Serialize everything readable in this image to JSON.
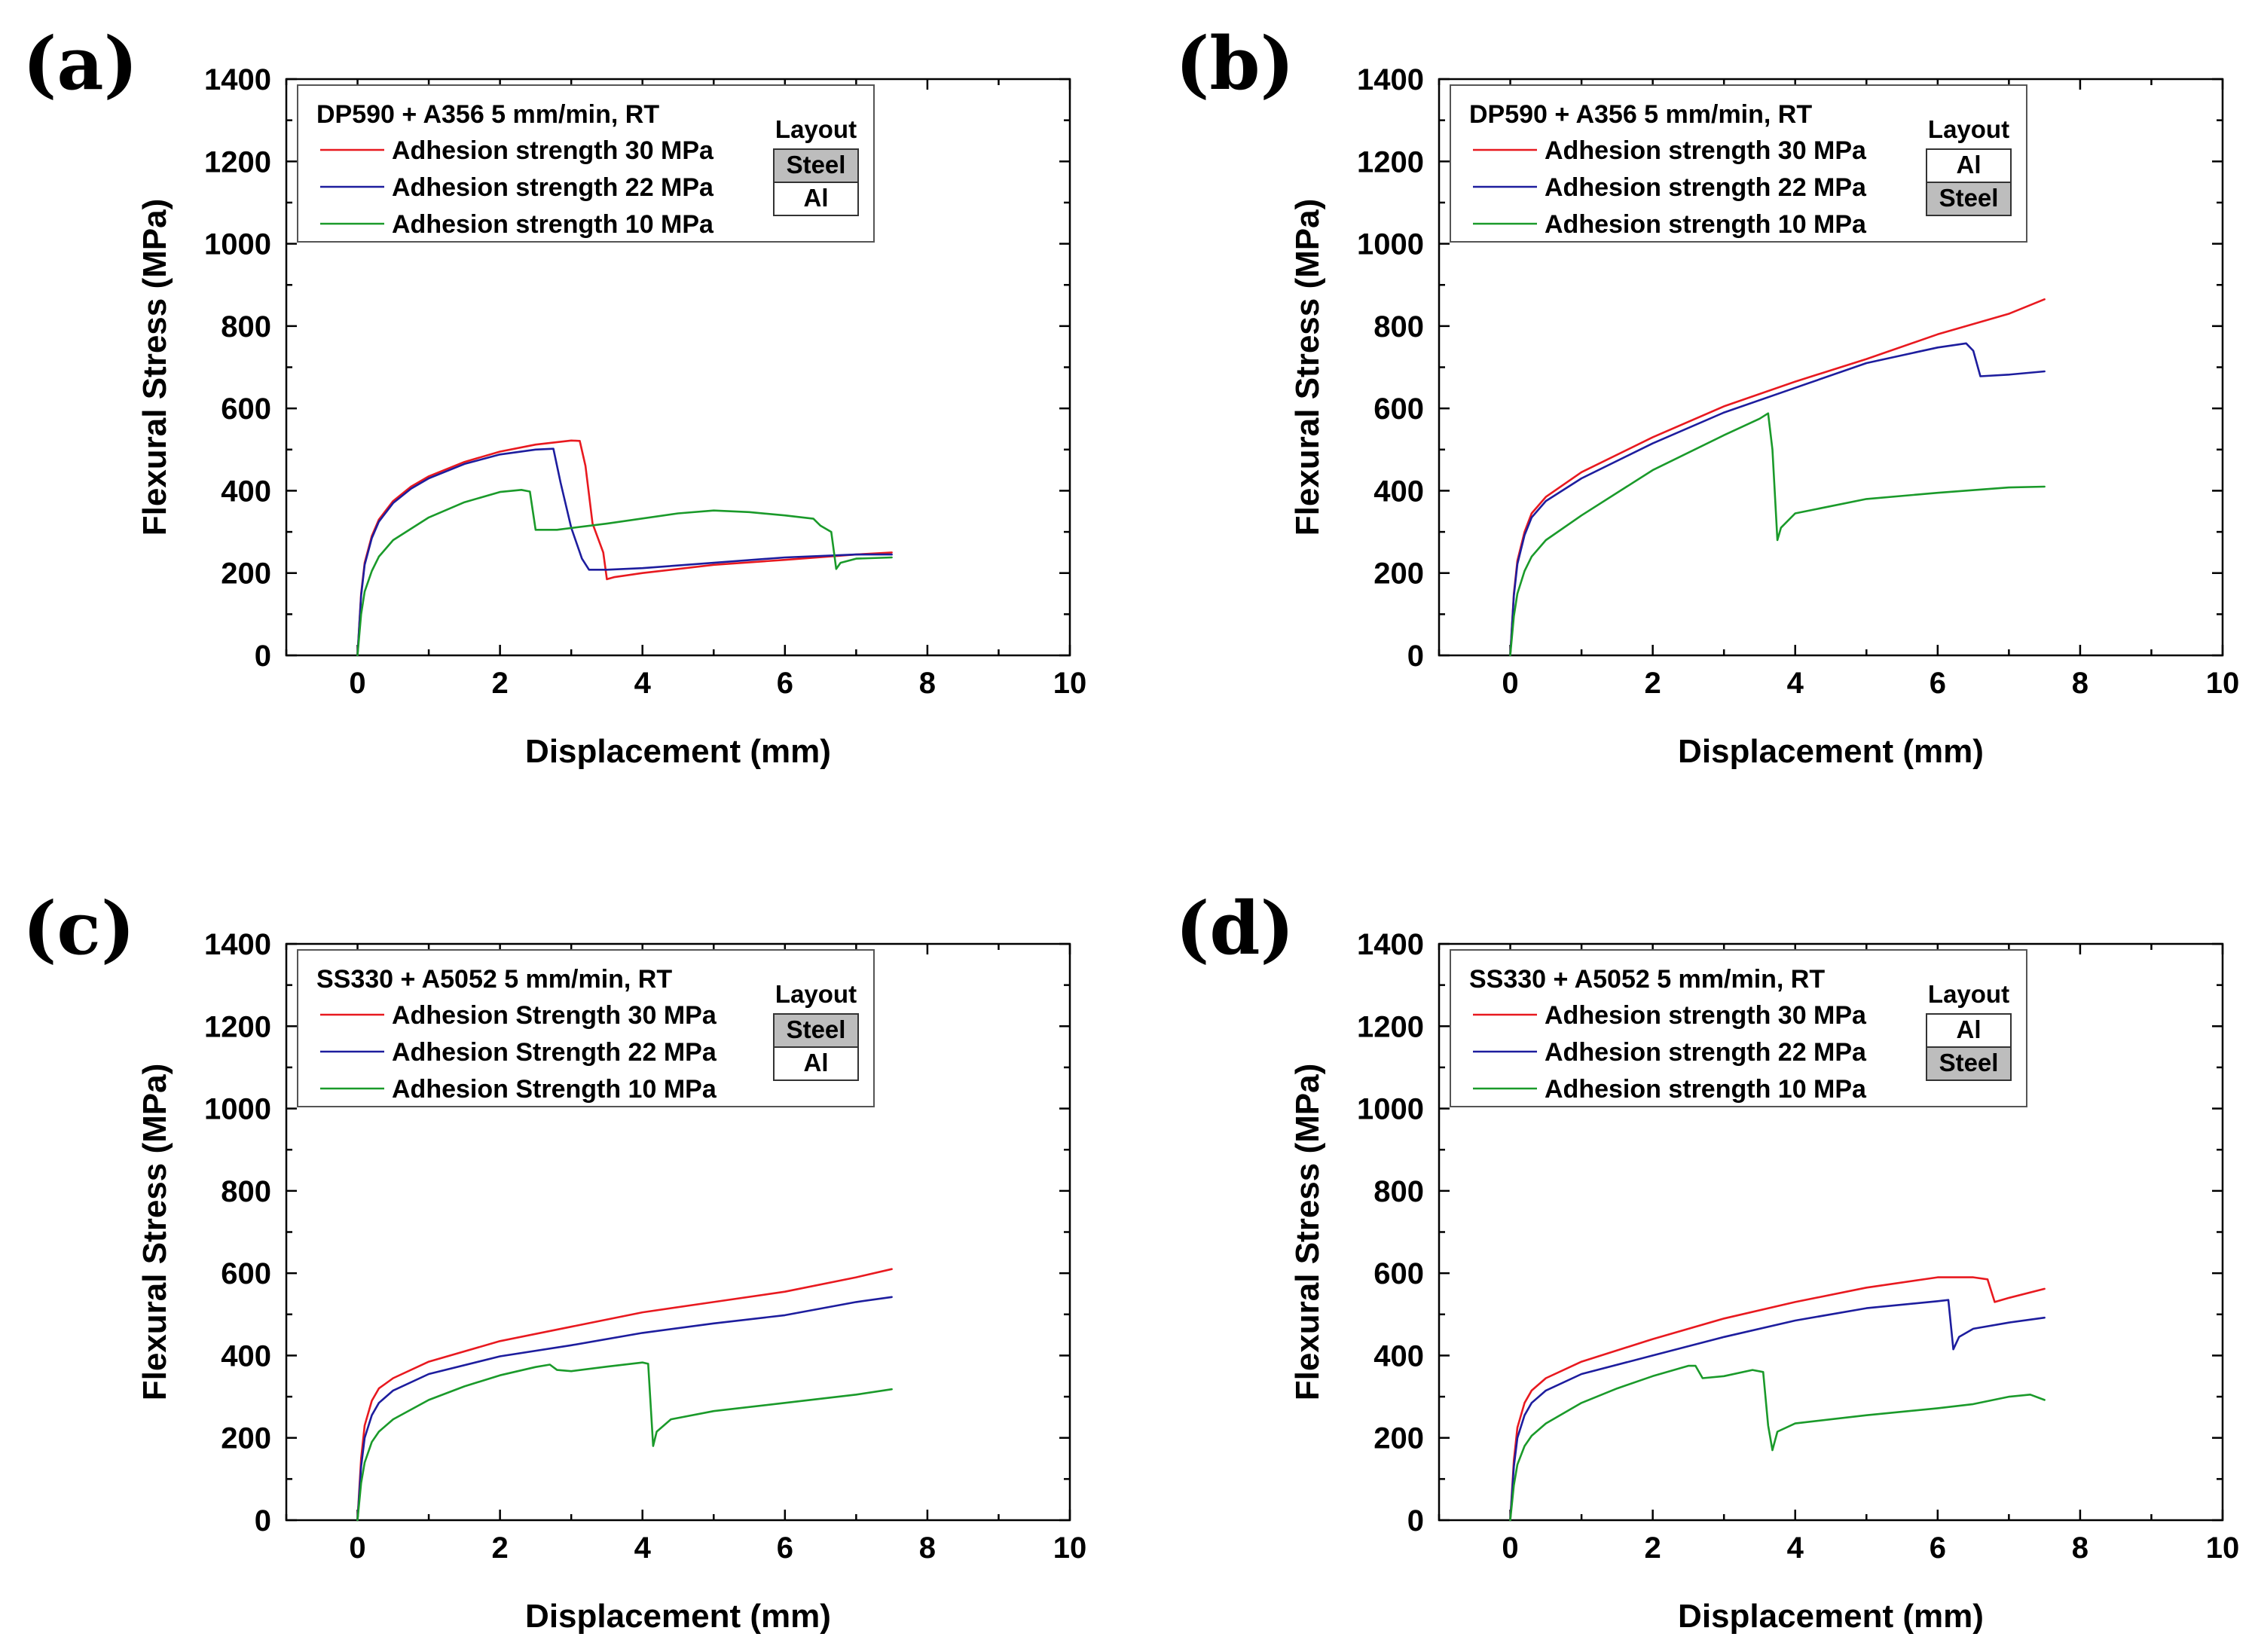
{
  "chart_data": [
    {
      "type": "line",
      "panel_label": "(a)",
      "xlabel": "Displacement (mm)",
      "ylabel": "Flexural Stress (MPa)",
      "xlim": [
        -1,
        10
      ],
      "ylim": [
        0,
        1400
      ],
      "xticks": [
        0,
        2,
        4,
        6,
        8,
        10
      ],
      "yticks": [
        0,
        200,
        400,
        600,
        800,
        1000,
        1200,
        1400
      ],
      "legend_title": "DP590 + A356 5 mm/min, RT",
      "legend_position": "top-left",
      "layout_label": "Layout",
      "layout_layers": [
        {
          "label": "Steel",
          "shaded": true
        },
        {
          "label": "Al",
          "shaded": false
        }
      ],
      "series": [
        {
          "name": "Adhesion strength 30 MPa",
          "color": "#e8191f",
          "x": [
            0,
            0.05,
            0.1,
            0.2,
            0.3,
            0.5,
            0.75,
            1.0,
            1.5,
            2.0,
            2.5,
            3.0,
            3.12,
            3.2,
            3.3,
            3.45,
            3.5,
            3.6,
            4.0,
            5.0,
            6.0,
            7.0,
            7.5
          ],
          "y": [
            0,
            150,
            225,
            290,
            330,
            375,
            410,
            435,
            470,
            495,
            512,
            522,
            521,
            460,
            320,
            250,
            185,
            190,
            200,
            220,
            232,
            245,
            250
          ]
        },
        {
          "name": "Adhesion strength 22 MPa",
          "color": "#1d1d9e",
          "x": [
            0,
            0.05,
            0.1,
            0.2,
            0.3,
            0.5,
            0.75,
            1.0,
            1.5,
            2.0,
            2.5,
            2.75,
            2.85,
            3.0,
            3.15,
            3.25,
            3.5,
            4.0,
            5.0,
            6.0,
            7.0,
            7.5
          ],
          "y": [
            0,
            145,
            220,
            285,
            325,
            370,
            405,
            430,
            465,
            488,
            500,
            502,
            420,
            310,
            235,
            208,
            208,
            212,
            225,
            238,
            245,
            245
          ]
        },
        {
          "name": "Adhesion strength 10 MPa",
          "color": "#1a9a2a",
          "x": [
            0,
            0.05,
            0.1,
            0.2,
            0.3,
            0.5,
            1.0,
            1.5,
            2.0,
            2.3,
            2.42,
            2.5,
            2.8,
            3.5,
            4.5,
            5.0,
            5.5,
            6.0,
            6.4,
            6.5,
            6.65,
            6.72,
            6.78,
            7.0,
            7.5
          ],
          "y": [
            0,
            100,
            155,
            205,
            240,
            280,
            335,
            372,
            397,
            402,
            398,
            305,
            305,
            320,
            345,
            352,
            348,
            340,
            332,
            315,
            300,
            210,
            225,
            235,
            238
          ]
        }
      ]
    },
    {
      "type": "line",
      "panel_label": "(b)",
      "xlabel": "Displacement (mm)",
      "ylabel": "Flexural Stress (MPa)",
      "xlim": [
        -1,
        10
      ],
      "ylim": [
        0,
        1400
      ],
      "xticks": [
        0,
        2,
        4,
        6,
        8,
        10
      ],
      "yticks": [
        0,
        200,
        400,
        600,
        800,
        1000,
        1200,
        1400
      ],
      "legend_title": "DP590 + A356 5 mm/min, RT",
      "legend_position": "top-left",
      "layout_label": "Layout",
      "layout_layers": [
        {
          "label": "Al",
          "shaded": false
        },
        {
          "label": "Steel",
          "shaded": true
        }
      ],
      "series": [
        {
          "name": "Adhesion strength 30 MPa",
          "color": "#e8191f",
          "x": [
            0,
            0.05,
            0.1,
            0.2,
            0.3,
            0.5,
            1.0,
            2.0,
            3.0,
            4.0,
            5.0,
            6.0,
            7.0,
            7.5
          ],
          "y": [
            0,
            150,
            230,
            300,
            345,
            385,
            445,
            530,
            605,
            665,
            720,
            780,
            830,
            865
          ]
        },
        {
          "name": "Adhesion strength 22 MPa",
          "color": "#1d1d9e",
          "x": [
            0,
            0.05,
            0.1,
            0.2,
            0.3,
            0.5,
            1.0,
            2.0,
            3.0,
            4.0,
            5.0,
            6.0,
            6.4,
            6.5,
            6.6,
            7.0,
            7.5
          ],
          "y": [
            0,
            145,
            222,
            292,
            335,
            375,
            430,
            515,
            590,
            650,
            710,
            748,
            758,
            740,
            678,
            682,
            690
          ]
        },
        {
          "name": "Adhesion strength 10 MPa",
          "color": "#1a9a2a",
          "x": [
            0,
            0.05,
            0.1,
            0.2,
            0.3,
            0.5,
            1.0,
            2.0,
            3.0,
            3.5,
            3.62,
            3.68,
            3.75,
            3.8,
            4.0,
            5.0,
            6.0,
            7.0,
            7.5
          ],
          "y": [
            0,
            95,
            150,
            205,
            240,
            280,
            340,
            450,
            535,
            575,
            588,
            500,
            280,
            310,
            345,
            380,
            395,
            408,
            410
          ]
        }
      ]
    },
    {
      "type": "line",
      "panel_label": "(c)",
      "xlabel": "Displacement (mm)",
      "ylabel": "Flexural Stress (MPa)",
      "xlim": [
        -1,
        10
      ],
      "ylim": [
        0,
        1400
      ],
      "xticks": [
        0,
        2,
        4,
        6,
        8,
        10
      ],
      "yticks": [
        0,
        200,
        400,
        600,
        800,
        1000,
        1200,
        1400
      ],
      "legend_title": "SS330 + A5052 5 mm/min, RT",
      "legend_position": "top-left",
      "layout_label": "Layout",
      "layout_layers": [
        {
          "label": "Steel",
          "shaded": true
        },
        {
          "label": "Al",
          "shaded": false
        }
      ],
      "series": [
        {
          "name": "Adhesion Strength 30 MPa",
          "color": "#e8191f",
          "x": [
            0,
            0.05,
            0.1,
            0.2,
            0.3,
            0.5,
            1.0,
            2.0,
            3.0,
            4.0,
            5.0,
            6.0,
            7.0,
            7.5
          ],
          "y": [
            0,
            150,
            230,
            290,
            320,
            345,
            385,
            435,
            470,
            505,
            530,
            555,
            590,
            610
          ]
        },
        {
          "name": "Adhesion Strength 22 MPa",
          "color": "#1d1d9e",
          "x": [
            0,
            0.05,
            0.1,
            0.2,
            0.3,
            0.5,
            1.0,
            2.0,
            3.0,
            4.0,
            5.0,
            6.0,
            7.0,
            7.5
          ],
          "y": [
            0,
            130,
            200,
            255,
            285,
            315,
            355,
            398,
            425,
            455,
            478,
            498,
            530,
            542
          ]
        },
        {
          "name": "Adhesion Strength 10 MPa",
          "color": "#1a9a2a",
          "x": [
            0,
            0.05,
            0.1,
            0.2,
            0.3,
            0.5,
            1.0,
            1.5,
            2.0,
            2.5,
            2.7,
            2.8,
            3.0,
            3.5,
            4.0,
            4.08,
            4.15,
            4.2,
            4.4,
            5.0,
            6.0,
            7.0,
            7.5
          ],
          "y": [
            0,
            90,
            140,
            190,
            215,
            245,
            292,
            325,
            352,
            372,
            378,
            365,
            362,
            373,
            383,
            380,
            180,
            215,
            245,
            265,
            285,
            305,
            318
          ]
        }
      ]
    },
    {
      "type": "line",
      "panel_label": "(d)",
      "xlabel": "Displacement (mm)",
      "ylabel": "Flexural Stress (MPa)",
      "xlim": [
        -1,
        10
      ],
      "ylim": [
        0,
        1400
      ],
      "xticks": [
        0,
        2,
        4,
        6,
        8,
        10
      ],
      "yticks": [
        0,
        200,
        400,
        600,
        800,
        1000,
        1200,
        1400
      ],
      "legend_title": "SS330 + A5052 5 mm/min, RT",
      "legend_position": "top-left",
      "layout_label": "Layout",
      "layout_layers": [
        {
          "label": "Al",
          "shaded": false
        },
        {
          "label": "Steel",
          "shaded": true
        }
      ],
      "series": [
        {
          "name": "Adhesion strength 30 MPa",
          "color": "#e8191f",
          "x": [
            0,
            0.05,
            0.1,
            0.2,
            0.3,
            0.5,
            1.0,
            2.0,
            3.0,
            4.0,
            5.0,
            6.0,
            6.5,
            6.7,
            6.8,
            7.0,
            7.5
          ],
          "y": [
            0,
            145,
            225,
            285,
            315,
            345,
            385,
            440,
            490,
            530,
            565,
            590,
            590,
            585,
            530,
            540,
            562
          ]
        },
        {
          "name": "Adhesion strength 22 MPa",
          "color": "#1d1d9e",
          "x": [
            0,
            0.05,
            0.1,
            0.2,
            0.3,
            0.5,
            1.0,
            2.0,
            3.0,
            4.0,
            5.0,
            6.0,
            6.15,
            6.22,
            6.3,
            6.5,
            7.0,
            7.5
          ],
          "y": [
            0,
            130,
            200,
            255,
            285,
            315,
            355,
            400,
            445,
            485,
            515,
            532,
            535,
            415,
            445,
            465,
            480,
            492
          ]
        },
        {
          "name": "Adhesion strength 10 MPa",
          "color": "#1a9a2a",
          "x": [
            0,
            0.05,
            0.1,
            0.2,
            0.3,
            0.5,
            1.0,
            1.5,
            2.0,
            2.5,
            2.6,
            2.7,
            3.0,
            3.4,
            3.55,
            3.62,
            3.68,
            3.75,
            4.0,
            5.0,
            6.0,
            6.5,
            7.0,
            7.3,
            7.5
          ],
          "y": [
            0,
            85,
            135,
            180,
            205,
            235,
            285,
            320,
            350,
            375,
            375,
            345,
            350,
            365,
            360,
            230,
            170,
            215,
            235,
            255,
            272,
            282,
            300,
            305,
            292
          ]
        }
      ]
    }
  ]
}
